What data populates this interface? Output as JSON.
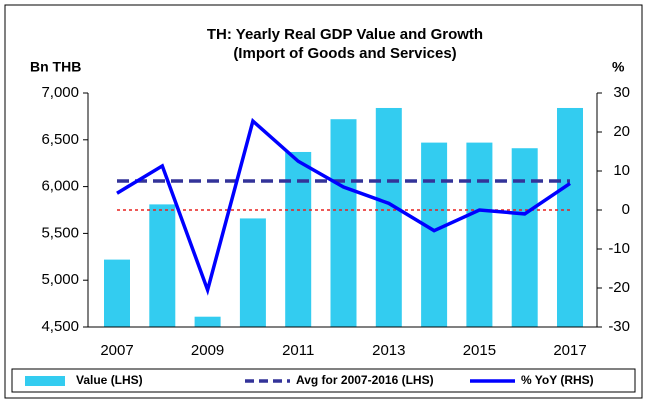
{
  "chart_data": {
    "type": "bar",
    "title": "TH: Yearly Real GDP Value and Growth",
    "subtitle": "(Import of Goods and Services)",
    "ylabel": "Bn THB",
    "y2label": "%",
    "categories": [
      "2007",
      null,
      "2009",
      null,
      "2011",
      null,
      "2013",
      null,
      "2015",
      null,
      "2017"
    ],
    "series": [
      {
        "name": "Value (LHS)",
        "type": "bar",
        "color": "#33ccf0",
        "axis": "y",
        "values": [
          5220,
          5810,
          4610,
          5660,
          6370,
          6720,
          6840,
          6470,
          6470,
          6410,
          6840
        ]
      },
      {
        "name": "Avg for 2007-2016 (LHS)",
        "type": "line",
        "dashed": true,
        "color": "#333399",
        "axis": "y",
        "values": [
          6060,
          6060,
          6060,
          6060,
          6060,
          6060,
          6060,
          6060,
          6060,
          6060,
          6060
        ]
      },
      {
        "name": "% YoY (RHS)",
        "type": "line",
        "dashed": false,
        "color": "#0000ff",
        "axis": "y2",
        "values": [
          4.3,
          11.3,
          -20.5,
          22.8,
          12.5,
          5.9,
          1.7,
          -5.3,
          0,
          -1,
          6.8
        ]
      }
    ],
    "y2_reference_line": {
      "value": 0,
      "color": "#e8211f"
    },
    "ylim": [
      4500,
      7000
    ],
    "yticks": [
      {
        "value": 4500,
        "label": "4,500"
      },
      {
        "value": 5000,
        "label": "5,000"
      },
      {
        "value": 5500,
        "label": "5,500"
      },
      {
        "value": 6000,
        "label": "6,000"
      },
      {
        "value": 6500,
        "label": "6,500"
      },
      {
        "value": 7000,
        "label": "7,000"
      }
    ],
    "y2lim": [
      -30,
      30
    ],
    "y2ticks": [
      -30,
      -20,
      -10,
      0,
      10,
      20,
      30
    ],
    "grid": false,
    "legend": "bottom"
  }
}
